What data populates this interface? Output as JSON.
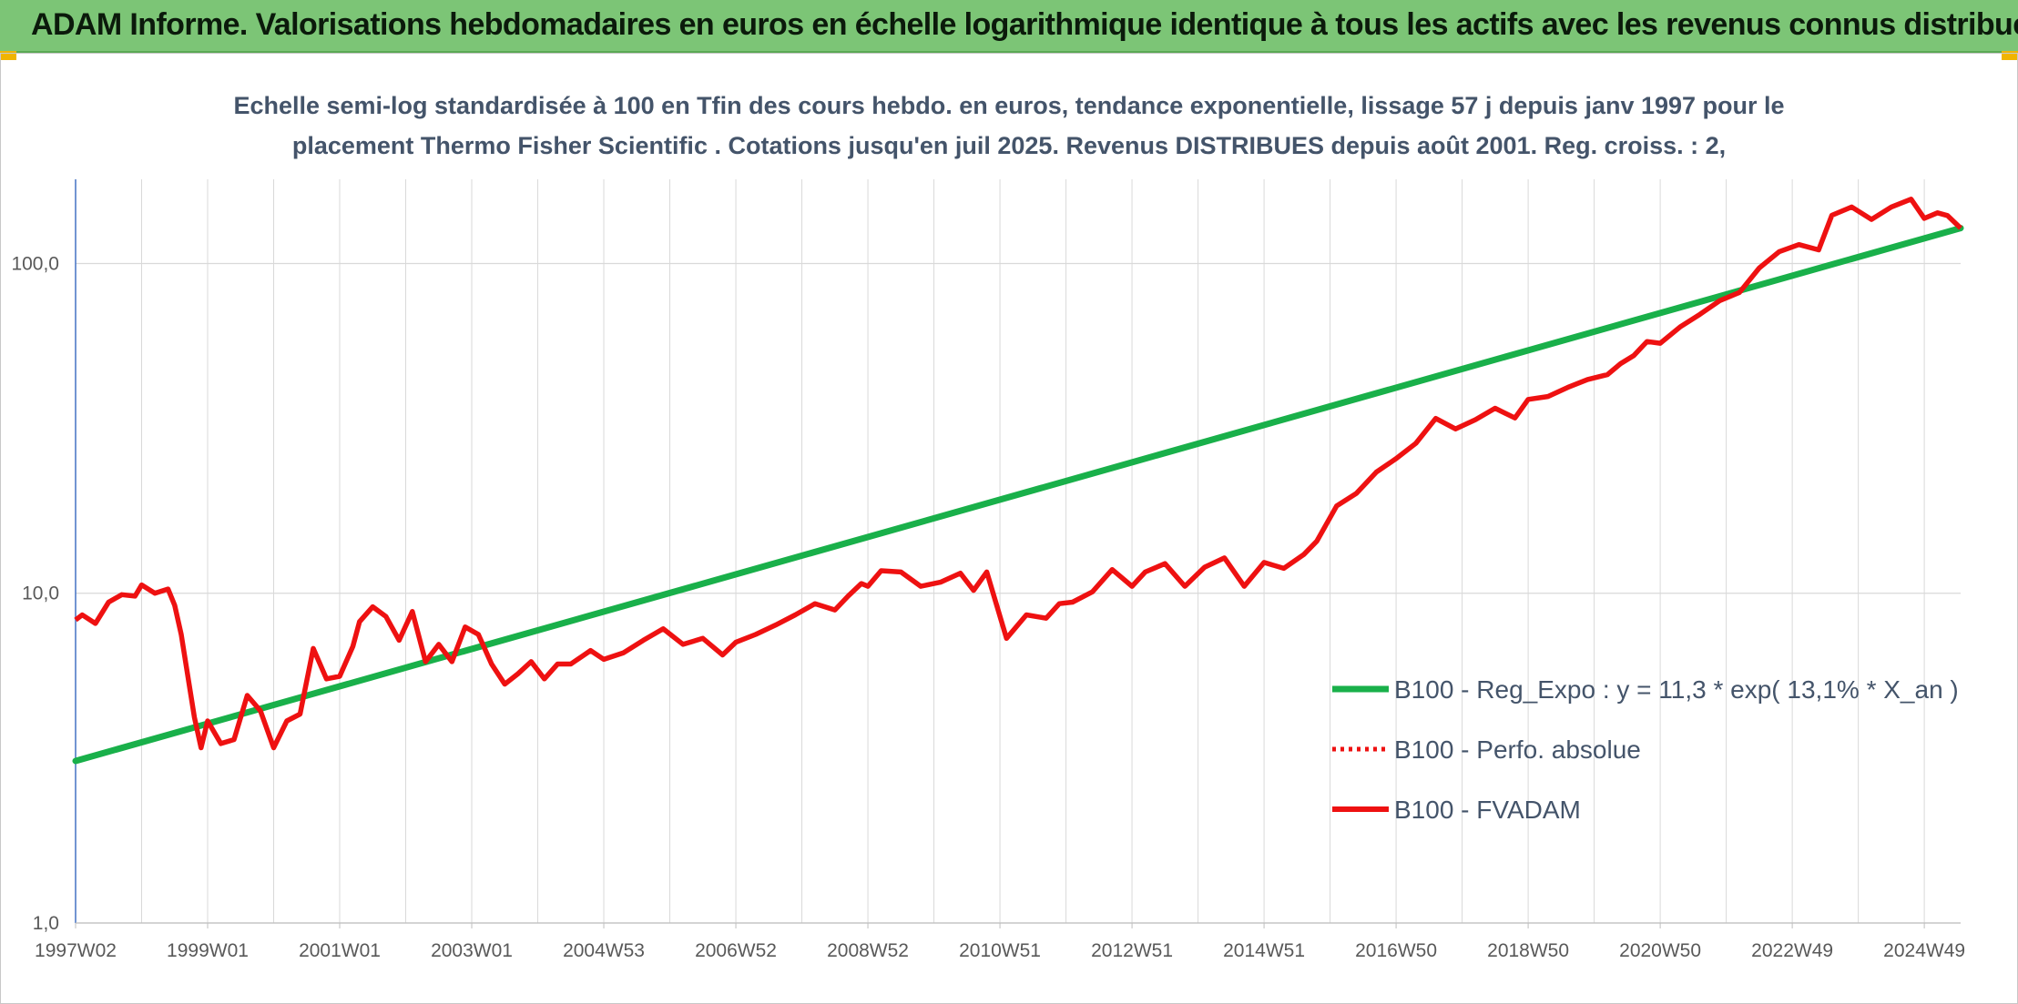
{
  "banner": {
    "title": "ADAM Informe. Valorisations hebdomadaires en euros en échelle logarithmique identique à tous les actifs avec les revenus connus distribués"
  },
  "colors": {
    "banner_bg": "#7cc576",
    "trend": "#19b04a",
    "fvadam": "#ee1111",
    "perfo": "#ee1111",
    "subtitle": "#44546a",
    "grid": "#d9d9d9"
  },
  "chart_data": {
    "type": "line",
    "title_lines": [
      "Echelle semi-log standardisée à 100 en Tfin des cours hebdo. en euros, tendance exponentielle, lissage 57 j depuis janv 1997 pour le",
      "placement Thermo Fisher Scientific . Cotations jusqu'en juil 2025. Revenus DISTRIBUES depuis août 2001. Reg. croiss. : 2,"
    ],
    "yscale": "log",
    "ylim": [
      1,
      180
    ],
    "yticks": [
      {
        "value": 1,
        "label": "1,0"
      },
      {
        "value": 10,
        "label": "10,0"
      },
      {
        "value": 100,
        "label": "100,0"
      }
    ],
    "xlim": [
      1997.0,
      2025.55
    ],
    "xticks": [
      {
        "value": 1997.0,
        "label": "1997W02"
      },
      {
        "value": 1999.0,
        "label": "1999W01"
      },
      {
        "value": 2001.0,
        "label": "2001W01"
      },
      {
        "value": 2003.0,
        "label": "2003W01"
      },
      {
        "value": 2005.0,
        "label": "2004W53"
      },
      {
        "value": 2007.0,
        "label": "2006W52"
      },
      {
        "value": 2009.0,
        "label": "2008W52"
      },
      {
        "value": 2011.0,
        "label": "2010W51"
      },
      {
        "value": 2013.0,
        "label": "2012W51"
      },
      {
        "value": 2015.0,
        "label": "2014W51"
      },
      {
        "value": 2017.0,
        "label": "2016W50"
      },
      {
        "value": 2019.0,
        "label": "2018W50"
      },
      {
        "value": 2021.0,
        "label": "2020W50"
      },
      {
        "value": 2023.0,
        "label": "2022W49"
      },
      {
        "value": 2025.0,
        "label": "2024W49"
      }
    ],
    "grid": true,
    "legend_position": "right",
    "series": [
      {
        "name": "B100 - Reg_Expo : y = 11,3 * exp( 13,1% *  X_an )",
        "style": "solid",
        "color": "#19b04a",
        "x": [
          1997.0,
          2025.55
        ],
        "y": [
          3.1,
          128
        ]
      },
      {
        "name": "B100 - Perfo. absolue",
        "style": "dotted",
        "color": "#ee1111",
        "x": [],
        "y": []
      },
      {
        "name": "B100 - FVADAM",
        "style": "solid",
        "color": "#ee1111",
        "x": [
          1997.0,
          1997.1,
          1997.3,
          1997.5,
          1997.7,
          1997.9,
          1998.0,
          1998.2,
          1998.4,
          1998.5,
          1998.6,
          1998.7,
          1998.8,
          1998.9,
          1999.0,
          1999.2,
          1999.4,
          1999.6,
          1999.8,
          2000.0,
          2000.2,
          2000.4,
          2000.6,
          2000.8,
          2001.0,
          2001.2,
          2001.3,
          2001.5,
          2001.7,
          2001.9,
          2002.1,
          2002.3,
          2002.5,
          2002.7,
          2002.9,
          2003.1,
          2003.3,
          2003.5,
          2003.7,
          2003.9,
          2004.1,
          2004.3,
          2004.5,
          2004.8,
          2005.0,
          2005.3,
          2005.6,
          2005.9,
          2006.2,
          2006.5,
          2006.8,
          2007.0,
          2007.3,
          2007.6,
          2007.9,
          2008.2,
          2008.5,
          2008.7,
          2008.9,
          2009.0,
          2009.2,
          2009.5,
          2009.8,
          2010.1,
          2010.4,
          2010.6,
          2010.8,
          2011.1,
          2011.4,
          2011.7,
          2011.9,
          2012.1,
          2012.4,
          2012.7,
          2013.0,
          2013.2,
          2013.5,
          2013.8,
          2014.1,
          2014.4,
          2014.7,
          2015.0,
          2015.3,
          2015.6,
          2015.8,
          2016.1,
          2016.4,
          2016.7,
          2017.0,
          2017.3,
          2017.6,
          2017.9,
          2018.2,
          2018.5,
          2018.8,
          2019.0,
          2019.3,
          2019.6,
          2019.9,
          2020.2,
          2020.4,
          2020.6,
          2020.8,
          2021.0,
          2021.3,
          2021.6,
          2021.9,
          2022.2,
          2022.5,
          2022.8,
          2023.1,
          2023.4,
          2023.6,
          2023.9,
          2024.2,
          2024.5,
          2024.8,
          2025.0,
          2025.2,
          2025.35,
          2025.55
        ],
        "y": [
          8.3,
          8.6,
          8.1,
          9.4,
          9.9,
          9.8,
          10.6,
          10.0,
          10.3,
          9.2,
          7.5,
          5.6,
          4.2,
          3.4,
          4.1,
          3.5,
          3.6,
          4.9,
          4.4,
          3.4,
          4.1,
          4.3,
          6.8,
          5.5,
          5.6,
          6.9,
          8.2,
          9.1,
          8.5,
          7.2,
          8.8,
          6.2,
          7.0,
          6.2,
          7.9,
          7.5,
          6.1,
          5.3,
          5.7,
          6.2,
          5.5,
          6.1,
          6.1,
          6.7,
          6.3,
          6.6,
          7.2,
          7.8,
          7.0,
          7.3,
          6.5,
          7.1,
          7.5,
          8.0,
          8.6,
          9.3,
          8.9,
          9.8,
          10.7,
          10.5,
          11.7,
          11.6,
          10.5,
          10.8,
          11.5,
          10.2,
          11.6,
          7.3,
          8.6,
          8.4,
          9.3,
          9.4,
          10.1,
          11.8,
          10.5,
          11.6,
          12.3,
          10.5,
          12.0,
          12.8,
          10.5,
          12.4,
          11.9,
          13.1,
          14.4,
          18.4,
          20.1,
          23.3,
          25.6,
          28.5,
          33.9,
          31.5,
          33.6,
          36.4,
          34.0,
          38.7,
          39.5,
          42.1,
          44.5,
          46.0,
          49.7,
          52.6,
          58.0,
          57.3,
          64.2,
          70.1,
          77.1,
          81.7,
          96.9,
          108.5,
          114.1,
          110.0,
          140.0,
          148.4,
          136.0,
          148.4,
          156.7,
          137.0,
          142.5,
          139.8,
          128.0
        ]
      }
    ]
  }
}
